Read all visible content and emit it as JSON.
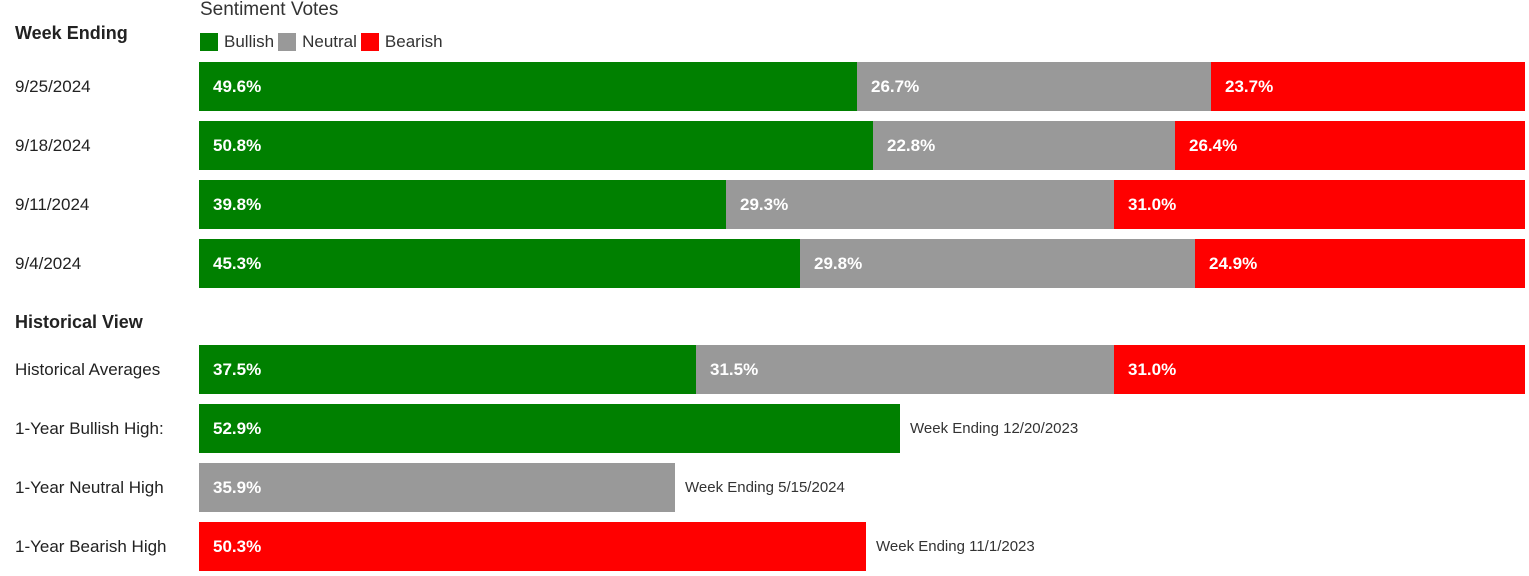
{
  "colors": {
    "bullish": "#008000",
    "neutral": "#999999",
    "bearish": "#ff0000"
  },
  "chart_data": {
    "type": "bar",
    "orientation": "horizontal",
    "stacked": true,
    "title": "Sentiment Votes",
    "xlim": [
      0,
      100
    ],
    "legend": {
      "placement": "top-left",
      "entries": [
        {
          "name": "Bullish",
          "color": "#008000"
        },
        {
          "name": "Neutral",
          "color": "#999999"
        },
        {
          "name": "Bearish",
          "color": "#ff0000"
        }
      ]
    },
    "weekly": {
      "header": "Week Ending",
      "categories": [
        "9/25/2024",
        "9/18/2024",
        "9/11/2024",
        "9/4/2024"
      ],
      "series": [
        {
          "name": "Bullish",
          "values": [
            49.6,
            50.8,
            39.8,
            45.3
          ]
        },
        {
          "name": "Neutral",
          "values": [
            26.7,
            22.8,
            29.3,
            29.8
          ]
        },
        {
          "name": "Bearish",
          "values": [
            23.7,
            26.4,
            31.0,
            24.9
          ]
        }
      ]
    },
    "historical": {
      "header": "Historical View",
      "averages": {
        "label": "Historical Averages",
        "values": {
          "Bullish": 37.5,
          "Neutral": 31.5,
          "Bearish": 31.0
        }
      },
      "highs": [
        {
          "label": "1-Year Bullish High:",
          "series": "Bullish",
          "value": 52.9,
          "note": "Week Ending 12/20/2023"
        },
        {
          "label": "1-Year Neutral High",
          "series": "Neutral",
          "value": 35.9,
          "note": "Week Ending 5/15/2024"
        },
        {
          "label": "1-Year Bearish High",
          "series": "Bearish",
          "value": 50.3,
          "note": "Week Ending 11/1/2023"
        }
      ]
    }
  }
}
